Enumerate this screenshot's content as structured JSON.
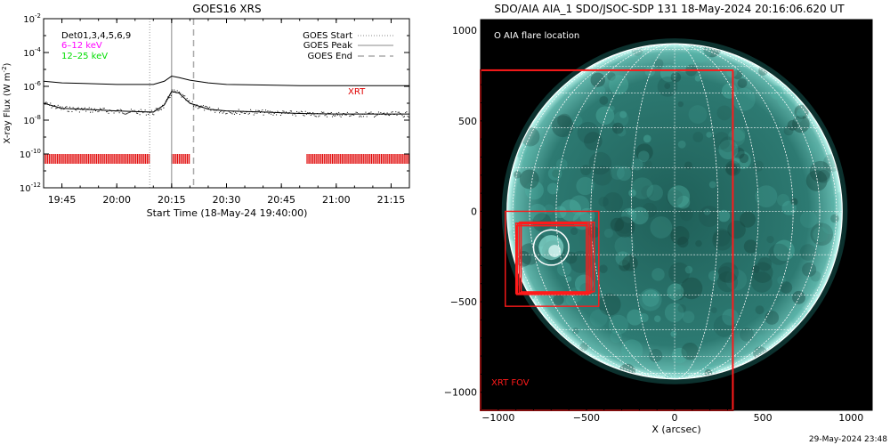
{
  "footer": {
    "timestamp": "29-May-2024 23:48"
  },
  "colors": {
    "lc_red": "#e00000",
    "lc_magenta": "#ff00ff",
    "lc_green": "#00dd00",
    "disk": "#2d7a72",
    "grid": "#ffffff",
    "fov": "#ff1a1a"
  },
  "chart_data": [
    {
      "type": "line",
      "title": "GOES16 XRS",
      "xlabel": "Start Time (18-May-24 19:40:00)",
      "ylabel": "X-ray Flux (W m⁻²)",
      "ylabel_base": "X-ray Flux (W m",
      "ylabel_exp": "-2",
      "ylabel_close": ")",
      "y_scale": "log",
      "ylim": [
        1e-12,
        0.01
      ],
      "xlim": [
        "19:40:00",
        "21:20:00"
      ],
      "x_ticks": [
        "19:45",
        "20:00",
        "20:15",
        "20:30",
        "20:45",
        "21:00",
        "21:15"
      ],
      "y_tick_exponents": [
        "-2",
        "-4",
        "-6",
        "-8",
        "-10",
        "-12"
      ],
      "y_ticks": [
        0.01,
        0.0001,
        1e-06,
        1e-08,
        1e-10,
        1e-12
      ],
      "grid": false,
      "legend": {
        "placement": "top-right",
        "entries": [
          {
            "label": "GOES Start",
            "style": "dotted"
          },
          {
            "label": "GOES Peak",
            "style": "solid"
          },
          {
            "label": "GOES End",
            "style": "dashed"
          }
        ]
      },
      "channel_labels": [
        {
          "text": "Det01,3,4,5,6,9",
          "color": "#000000"
        },
        {
          "text": "6–12 keV",
          "color": "#ff00ff"
        },
        {
          "text": "12–25 keV",
          "color": "#00dd00"
        }
      ],
      "annotation": {
        "text": "XRT",
        "color": "#e00000"
      },
      "vlines": [
        {
          "name": "GOES Start",
          "time": "20:09",
          "style": "dotted"
        },
        {
          "name": "GOES Peak",
          "time": "20:15",
          "style": "solid"
        },
        {
          "name": "GOES End",
          "time": "20:21",
          "style": "dashed"
        }
      ],
      "series": [
        {
          "name": "",
          "x": [
            "19:40",
            "19:45",
            "19:50",
            "19:55",
            "20:00",
            "20:05",
            "20:10",
            "20:13",
            "20:15",
            "20:17",
            "20:20",
            "20:25",
            "20:30",
            "20:40",
            "20:50",
            "21:00",
            "21:10",
            "21:20"
          ],
          "values": [
            2e-06,
            1.6e-06,
            1.5e-06,
            1.4e-06,
            1.3e-06,
            1.3e-06,
            1.3e-06,
            2e-06,
            4e-06,
            3.3e-06,
            2.3e-06,
            1.6e-06,
            1.3e-06,
            1.2e-06,
            1.1e-06,
            1.1e-06,
            1.1e-06,
            1.1e-06
          ]
        },
        {
          "name": "",
          "x": [
            "19:40",
            "19:45",
            "19:50",
            "19:55",
            "20:00",
            "20:05",
            "20:10",
            "20:13",
            "20:15",
            "20:17",
            "20:20",
            "20:25",
            "20:30",
            "20:40",
            "20:50",
            "21:00",
            "21:10",
            "21:20"
          ],
          "values": [
            1e-07,
            5e-08,
            4.5e-08,
            4e-08,
            3.5e-08,
            3.2e-08,
            3e-08,
            8e-08,
            5e-07,
            4e-07,
            1e-07,
            4.5e-08,
            3.5e-08,
            3e-08,
            2.5e-08,
            2.3e-08,
            2.3e-08,
            2.3e-08
          ]
        }
      ],
      "xrt_coverage": [
        {
          "start": "19:40",
          "end": "20:09"
        },
        {
          "start": "20:15",
          "end": "20:20"
        },
        {
          "start": "20:52",
          "end": "21:20"
        }
      ]
    },
    {
      "type": "scatter",
      "title": "SDO/AIA AIA_1 SDO/JSOC-SDP 131 18-May-2024 20:16:06.620 UT",
      "xlabel": "X (arcsec)",
      "ylabel": "",
      "xlim": [
        -1100,
        1120
      ],
      "ylim": [
        -1100,
        1060
      ],
      "x_ticks": [
        -1000,
        -500,
        0,
        500,
        1000
      ],
      "y_ticks": [
        1000,
        500,
        0,
        -500,
        -1000
      ],
      "x_tick_labels": [
        "−1000",
        "−500",
        "0",
        "500",
        "1000"
      ],
      "y_tick_labels": [
        "1000",
        "500",
        "0",
        "−500",
        "−1000"
      ],
      "legend": {
        "text": "O AIA flare location",
        "placement": "top-left"
      },
      "solar_radius": 950,
      "flare_location": {
        "x": -700,
        "y": -200,
        "radius": 100
      },
      "fov_boxes": [
        {
          "label": "XRT FOV",
          "x0": -1100,
          "x1": 330,
          "y0": -1100,
          "y1": 780
        },
        {
          "label": "",
          "x0": -960,
          "x1": -430,
          "y0": -525,
          "y1": 0
        },
        {
          "label": "",
          "x0": -900,
          "x1": -500,
          "y0": -455,
          "y1": -65
        },
        {
          "label": "",
          "x0": -880,
          "x1": -470,
          "y0": -450,
          "y1": -60
        },
        {
          "label": "",
          "x0": -890,
          "x1": -480,
          "y0": -455,
          "y1": -70
        },
        {
          "label": "",
          "x0": -870,
          "x1": -455,
          "y0": -445,
          "y1": -60
        },
        {
          "label": "",
          "x0": -895,
          "x1": -490,
          "y0": -460,
          "y1": -80
        }
      ]
    }
  ]
}
